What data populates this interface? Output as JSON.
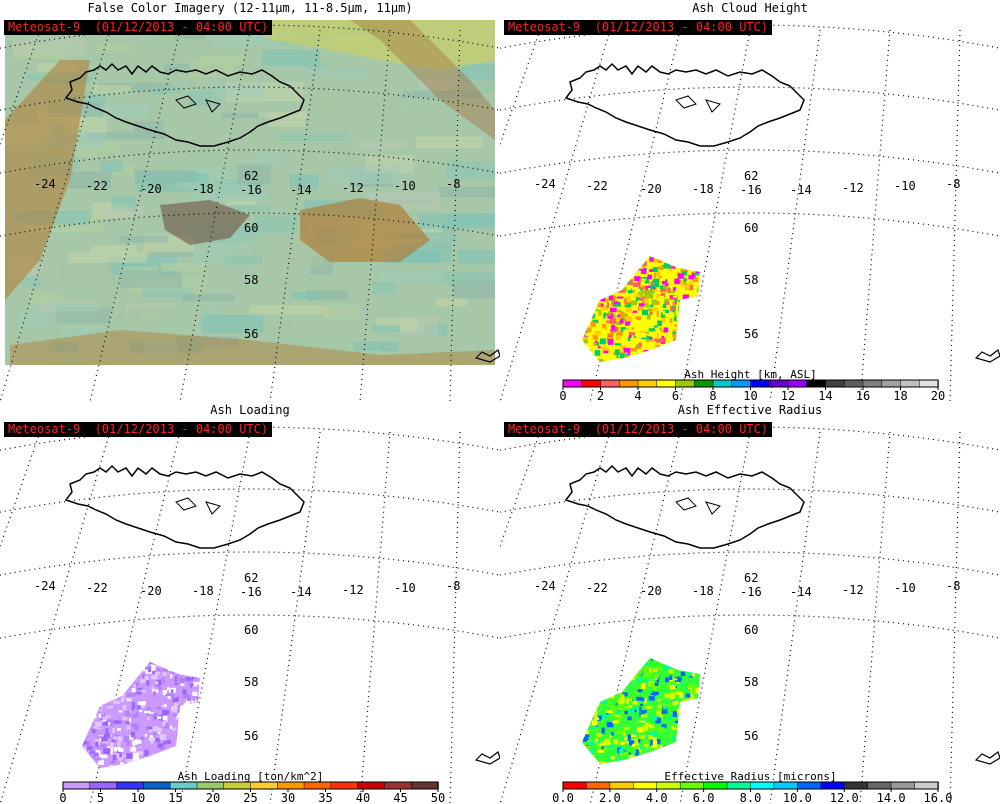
{
  "panels": [
    {
      "id": "false-color",
      "title": "False Color Imagery (12-11μm, 11-8.5μm, 11μm)",
      "badge": "Meteosat-9  (01/12/2013 - 04:00 UTC)",
      "type": "imagery"
    },
    {
      "id": "ash-height",
      "title": "Ash Cloud Height",
      "badge": "Meteosat-9  (01/12/2013 - 04:00 UTC)",
      "type": "product",
      "colorbar": {
        "title": "Ash Height [km, ASL]",
        "ticks": [
          "0",
          "2",
          "4",
          "6",
          "8",
          "10",
          "12",
          "14",
          "16",
          "18",
          "20"
        ],
        "colors": [
          "#ff00ff",
          "#ff0000",
          "#ff6060",
          "#ff9900",
          "#ffcc00",
          "#ffff00",
          "#99cc00",
          "#009900",
          "#00cccc",
          "#0099ff",
          "#0000ff",
          "#6600cc",
          "#9900ff",
          "#000000",
          "#404040",
          "#606060",
          "#808080",
          "#a0a0a0",
          "#c0c0c0",
          "#e0e0e0"
        ]
      },
      "ash_colors": [
        "#ffff00",
        "#ffcc00",
        "#ff9900",
        "#99cc00",
        "#ff00ff",
        "#ff6060",
        "#00cc66"
      ]
    },
    {
      "id": "ash-loading",
      "title": "Ash Loading",
      "badge": "Meteosat-9  (01/12/2013 - 04:00 UTC)",
      "type": "product",
      "colorbar": {
        "title": "Ash Loading [ton/km^2]",
        "ticks": [
          "0",
          "5",
          "10",
          "15",
          "20",
          "25",
          "30",
          "35",
          "40",
          "45",
          "50"
        ],
        "colors": [
          "#cc99ff",
          "#9966ff",
          "#3333ff",
          "#0066cc",
          "#66cccc",
          "#99cc66",
          "#cccc33",
          "#ffcc33",
          "#ff9900",
          "#ff6600",
          "#ff3300",
          "#cc0000",
          "#993333",
          "#663333"
        ]
      },
      "ash_colors": [
        "#cc99ff",
        "#b380ff",
        "#e0c8ff",
        "#9966ff",
        "#ffffff"
      ]
    },
    {
      "id": "ash-radius",
      "title": "Ash Effective Radius",
      "badge": "Meteosat-9  (01/12/2013 - 04:00 UTC)",
      "type": "product",
      "colorbar": {
        "title": "Effective Radius [microns]",
        "ticks": [
          "0.0",
          "2.0",
          "4.0",
          "6.0",
          "8.0",
          "10.0",
          "12.0",
          "14.0",
          "16.0"
        ],
        "colors": [
          "#ff0000",
          "#ff6600",
          "#ffcc00",
          "#ffff00",
          "#ccff00",
          "#66ff00",
          "#00ff00",
          "#00ff99",
          "#00ffff",
          "#00ccff",
          "#0066ff",
          "#0000ff",
          "#333333",
          "#666666",
          "#999999",
          "#cccccc"
        ]
      },
      "ash_colors": [
        "#33ff33",
        "#66ff00",
        "#ccff00",
        "#ffff00",
        "#00ff99",
        "#0066ff"
      ]
    }
  ],
  "map": {
    "lat_labels": [
      "62",
      "60",
      "58",
      "56"
    ],
    "lon_labels": [
      "-24",
      "-22",
      "-20",
      "-18",
      "-16",
      "-14",
      "-12",
      "-10",
      "-8"
    ]
  }
}
